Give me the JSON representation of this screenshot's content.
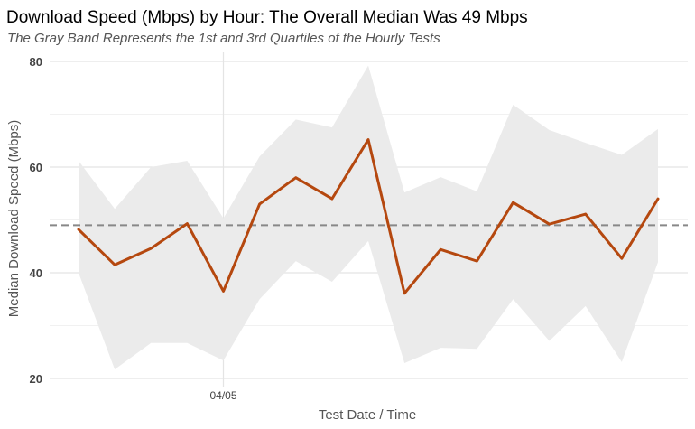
{
  "chart_data": {
    "type": "line",
    "title": "Download Speed (Mbps) by Hour: The Overall Median Was 49 Mbps",
    "subtitle": "The Gray Band Represents the 1st and 3rd Quartiles of the Hourly Tests",
    "xlabel": "Test Date / Time",
    "ylabel": "Median Download Speed (Mbps)",
    "x_tick_labels": [
      "04/05"
    ],
    "y_ticks": [
      20,
      40,
      60,
      80
    ],
    "ylim": [
      18,
      82
    ],
    "grid": true,
    "reference_line": {
      "value": 49,
      "style": "dashed",
      "color": "#888888"
    },
    "series": [
      {
        "values": [
          48.2,
          41.5,
          44.6,
          49.3,
          36.5,
          53.0,
          58.0,
          54.0,
          65.2,
          36.1,
          44.4,
          42.2,
          53.3,
          49.2,
          51.1,
          42.7,
          54.0
        ],
        "q1": [
          40.0,
          21.7,
          26.7,
          26.7,
          23.4,
          35.0,
          42.2,
          38.3,
          46.0,
          22.9,
          25.8,
          25.6,
          35.0,
          27.1,
          33.7,
          23.1,
          42.0
        ],
        "q3": [
          61.2,
          52.1,
          60.0,
          61.2,
          50.3,
          62.0,
          69.0,
          67.5,
          79.2,
          55.2,
          58.1,
          55.4,
          71.8,
          67.0,
          64.6,
          62.3,
          67.2
        ]
      }
    ],
    "colors": {
      "line": "#b5480f",
      "band": "#ebebeb",
      "grid": "#e4e4e4",
      "reference": "#888888"
    }
  }
}
